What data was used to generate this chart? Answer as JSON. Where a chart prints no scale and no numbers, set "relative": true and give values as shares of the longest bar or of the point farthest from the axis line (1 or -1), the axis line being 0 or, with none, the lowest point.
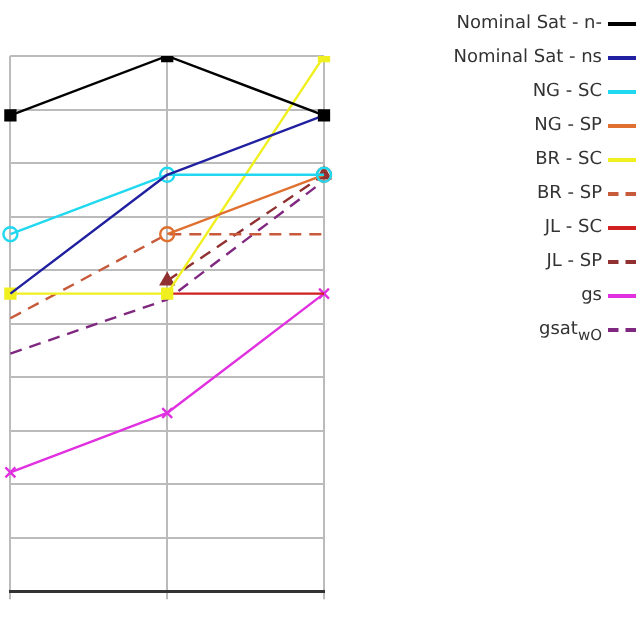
{
  "chart_data": {
    "type": "line",
    "relative": true,
    "grid": true,
    "legend": "top right",
    "categories": [
      null,
      null,
      null
    ],
    "series": [
      {
        "name": "Nominal Sat - n-",
        "color": "#000000",
        "values": [
          0.889,
          1,
          0.889
        ],
        "marker": "square",
        "line_style": "solid"
      },
      {
        "name": "Nominal Sat - ns",
        "color": "#2020a0",
        "values": [
          0.556,
          0.778,
          0.889
        ],
        "marker": "none",
        "line_style": "solid"
      },
      {
        "name": "NG - SC",
        "color": "#20d8f0",
        "values": [
          0.667,
          0.778,
          0.778
        ],
        "marker": "circle",
        "line_style": "solid"
      },
      {
        "name": "NG - SP",
        "color": "#e07030",
        "values": [
          null,
          0.667,
          0.778
        ],
        "marker": "circle",
        "line_style": "solid"
      },
      {
        "name": "BR - SC",
        "color": "#f0f020",
        "values": [
          0.556,
          0.556,
          1
        ],
        "marker": "square",
        "line_style": "solid"
      },
      {
        "name": "BR - SP",
        "color": "#c85a3c",
        "values": [
          0.51,
          0.667,
          0.667
        ],
        "marker": "none",
        "line_style": "dashed"
      },
      {
        "name": "JL - SC",
        "color": "#d02020",
        "values": [
          null,
          0.556,
          0.556
        ],
        "marker": "none",
        "line_style": "solid"
      },
      {
        "name": "JL - SP",
        "color": "#903030",
        "values": [
          null,
          0.58,
          0.778
        ],
        "marker": "triangle",
        "line_style": "dashed"
      },
      {
        "name": "gs",
        "color": "#e030e0",
        "values": [
          0.222,
          0.333,
          0.556
        ],
        "marker": "cross",
        "line_style": "solid"
      },
      {
        "name": "gsat$_{wO}$",
        "color": "#802880",
        "values": [
          0.444,
          0.545,
          0.767
        ],
        "marker": "none",
        "line_style": "dashed"
      }
    ]
  }
}
